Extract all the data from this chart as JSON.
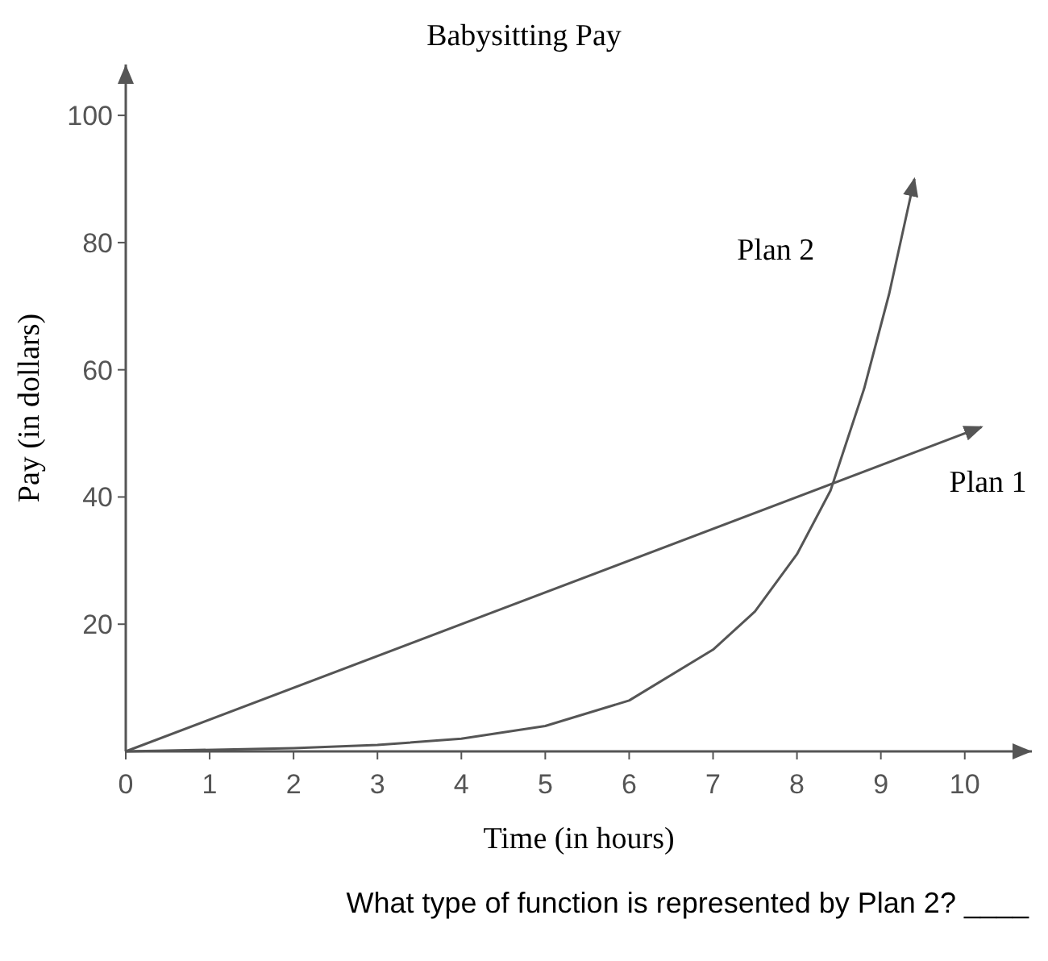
{
  "chart_data": {
    "type": "line",
    "title": "Babysitting Pay",
    "xlabel": "Time (in hours)",
    "ylabel": "Pay (in dollars)",
    "xlim": [
      0,
      10.8
    ],
    "ylim": [
      0,
      108
    ],
    "xticks": [
      0,
      1,
      2,
      3,
      4,
      5,
      6,
      7,
      8,
      9,
      10
    ],
    "yticks": [
      20,
      40,
      60,
      80,
      100
    ],
    "grid": false,
    "marker": "none",
    "line_style": "solid",
    "series": [
      {
        "name": "Plan 1",
        "color": "#555555",
        "x": [
          0,
          10.2
        ],
        "values": [
          0,
          51
        ]
      },
      {
        "name": "Plan 2",
        "color": "#555555",
        "x": [
          0,
          2,
          3,
          4,
          5,
          6,
          7,
          7.5,
          8,
          8.4,
          8.8,
          9.1,
          9.4
        ],
        "values": [
          0,
          0.5,
          1,
          2,
          4,
          8,
          16,
          22,
          31,
          41,
          57,
          72,
          90
        ]
      }
    ],
    "annotations": [
      "What type of function is represented by Plan 2? ____"
    ]
  }
}
